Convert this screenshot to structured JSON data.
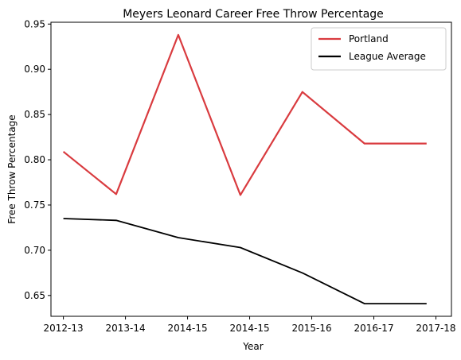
{
  "chart_data": {
    "type": "line",
    "title": "Meyers Leonard Career Free Throw Percentage",
    "xlabel": "Year",
    "ylabel": "Free Throw Percentage",
    "x_tick_labels": [
      "2012-13",
      "2013-14",
      "2014-15",
      "2014-15",
      "2015-16",
      "2016-17",
      "2017-18"
    ],
    "x_points": [
      0,
      1,
      2,
      3,
      4,
      5,
      6
    ],
    "xlim": [
      -0.2,
      6.25
    ],
    "ylim": [
      0.627,
      0.952
    ],
    "y_ticks": [
      0.65,
      0.7,
      0.75,
      0.8,
      0.85,
      0.9,
      0.95
    ],
    "y_tick_labels": [
      "0.65",
      "0.70",
      "0.75",
      "0.80",
      "0.85",
      "0.90",
      "0.95"
    ],
    "legend_position": "top-right",
    "grid": false,
    "series": [
      {
        "name": "Portland",
        "color": "#d93b3f",
        "x": [
          0,
          0.85,
          1.85,
          2.85,
          3.85,
          4.85,
          5.85
        ],
        "values": [
          0.809,
          0.762,
          0.938,
          0.761,
          0.875,
          0.818,
          0.818
        ]
      },
      {
        "name": "League Average",
        "color": "#000000",
        "x": [
          0,
          0.85,
          1.85,
          2.85,
          3.85,
          4.85,
          5.85
        ],
        "values": [
          0.735,
          0.733,
          0.714,
          0.703,
          0.675,
          0.641,
          0.641
        ]
      }
    ]
  }
}
